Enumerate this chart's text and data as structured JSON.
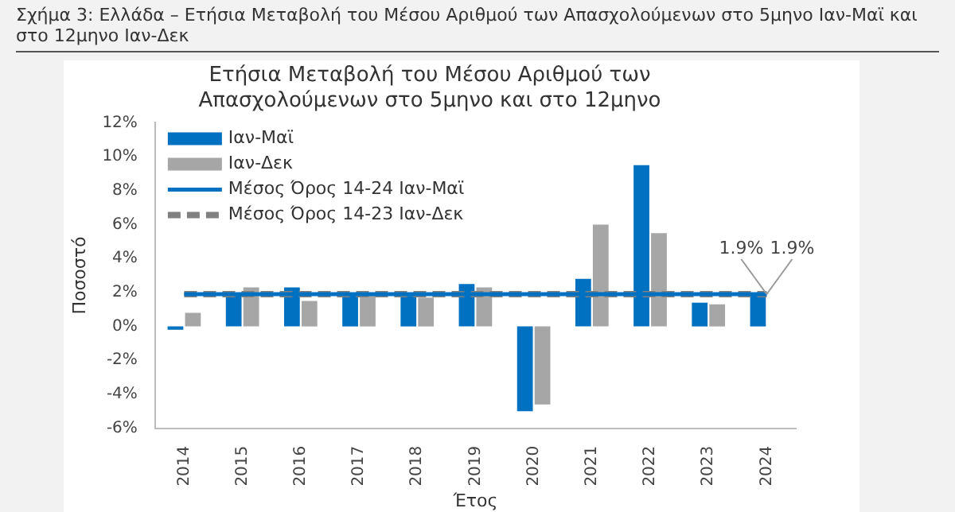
{
  "chart_data": {
    "type": "bar",
    "title": [
      "Ετήσια Μεταβολή του Μέσου Αριθμού των",
      "Απασχολούμενων στο 5μηνο και στο 12μηνο"
    ],
    "xlabel": "Έτος",
    "ylabel": "Ποσοστό",
    "categories": [
      "2014",
      "2015",
      "2016",
      "2017",
      "2018",
      "2019",
      "2020",
      "2021",
      "2022",
      "2023",
      "2024"
    ],
    "series": [
      {
        "name": "Ιαν-Μαϊ",
        "color": "#0070c0",
        "values": [
          -0.2,
          2.0,
          2.3,
          1.9,
          1.8,
          2.5,
          -5.0,
          2.8,
          9.5,
          1.4,
          1.9
        ]
      },
      {
        "name": "Ιαν-Δεκ",
        "color": "#a6a6a6",
        "values": [
          0.8,
          2.3,
          1.5,
          2.0,
          1.7,
          2.3,
          -4.6,
          6.0,
          5.5,
          1.3,
          null
        ]
      },
      {
        "name": "Μέσος Όρος 14-24 Ιαν-Μαϊ",
        "type": "line",
        "color": "#0070c0",
        "line_style": "solid",
        "values": [
          1.9,
          1.9,
          1.9,
          1.9,
          1.9,
          1.9,
          1.9,
          1.9,
          1.9,
          1.9,
          1.9
        ]
      },
      {
        "name": "Μέσος Όρος 14-23 Ιαν-Δεκ",
        "type": "line",
        "color": "#808080",
        "line_style": "dashed",
        "values": [
          1.9,
          1.9,
          1.9,
          1.9,
          1.9,
          1.9,
          1.9,
          1.9,
          1.9,
          1.9,
          1.9
        ]
      }
    ],
    "ylim": [
      -6,
      12
    ],
    "yticks": [
      {
        "value": -6,
        "label": "-6%"
      },
      {
        "value": -4,
        "label": "-4%"
      },
      {
        "value": -2,
        "label": "-2%"
      },
      {
        "value": 0,
        "label": "0%"
      },
      {
        "value": 2,
        "label": "2%"
      },
      {
        "value": 4,
        "label": "4%"
      },
      {
        "value": 6,
        "label": "6%"
      },
      {
        "value": 8,
        "label": "8%"
      },
      {
        "value": 10,
        "label": "10%"
      },
      {
        "value": 12,
        "label": "12%"
      }
    ],
    "grid": false,
    "legend": "top left",
    "marker": "none",
    "annotations": [
      "Σχήμα 3: Ελλάδα – Ετήσια Μεταβολή του Μέσου Αριθμού των Απασχολούμενων στο 5μηνο Ιαν-Μαϊ και στο 12μηνο Ιαν-Δεκ",
      {
        "text": "1.9%",
        "x": "2024",
        "y": 1.9
      },
      {
        "text": "1.9%",
        "x": "2024",
        "y": 1.9
      }
    ]
  }
}
